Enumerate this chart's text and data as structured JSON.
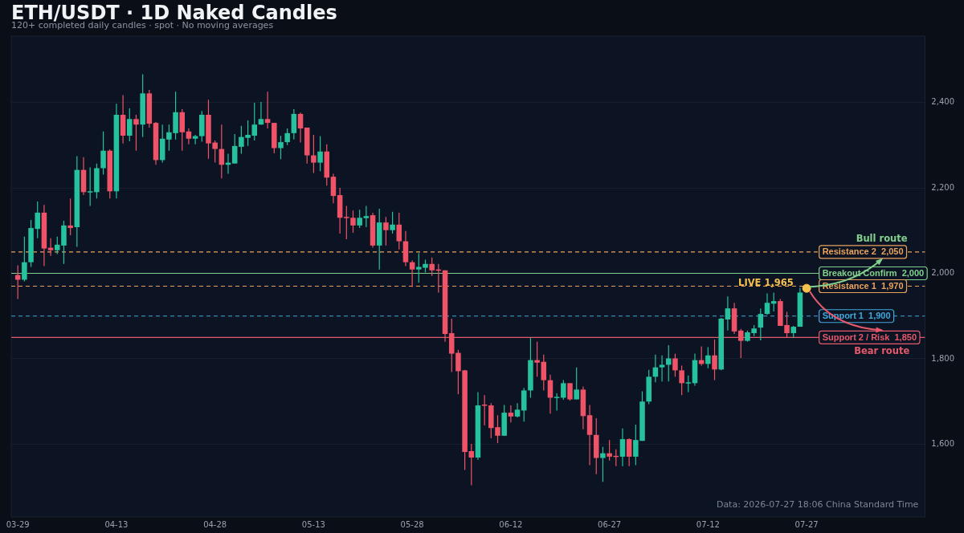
{
  "chart_data": {
    "type": "candlestick",
    "title": "ETH/USDT · 1D Naked Candles",
    "subtitle": "120+ completed daily candles · spot · No moving averages",
    "x": [
      "--03-29",
      "--03-30",
      "--03-31",
      "--04-01",
      "--04-02",
      "--04-03",
      "--04-04",
      "--04-05",
      "--04-06",
      "--04-07",
      "--04-08",
      "--04-09",
      "--04-10",
      "--04-11",
      "--04-12",
      "--04-13",
      "--04-14",
      "--04-15",
      "--04-16",
      "--04-17",
      "--04-18",
      "--04-19",
      "--04-20",
      "--04-21",
      "--04-22",
      "--04-23",
      "--04-24",
      "--04-25",
      "--04-26",
      "--04-27",
      "--04-28",
      "--04-29",
      "--04-30",
      "--05-01",
      "--05-02",
      "--05-03",
      "--05-04",
      "--05-05",
      "--05-06",
      "--05-07",
      "--05-08",
      "--05-09",
      "--05-10",
      "--05-11",
      "--05-12",
      "--05-13",
      "--05-14",
      "--05-15",
      "--05-16",
      "--05-17",
      "--05-18",
      "--05-19",
      "--05-20",
      "--05-21",
      "--05-22",
      "--05-23",
      "--05-24",
      "--05-25",
      "--05-26",
      "--05-27",
      "--05-28",
      "--05-29",
      "--05-30",
      "--05-31",
      "--06-01",
      "--06-02",
      "--06-03",
      "--06-04",
      "--06-05",
      "--06-06",
      "--06-07",
      "--06-08",
      "--06-09",
      "--06-10",
      "--06-11",
      "--06-12",
      "--06-13",
      "--06-14",
      "--06-15",
      "--06-16",
      "--06-17",
      "--06-18",
      "--06-19",
      "--06-20",
      "--06-21",
      "--06-22",
      "--06-23",
      "--06-24",
      "--06-25",
      "--06-26",
      "--06-27",
      "--06-28",
      "--06-29",
      "--06-30",
      "--07-01",
      "--07-02",
      "--07-03",
      "--07-04",
      "--07-05",
      "--07-06",
      "--07-07",
      "--07-08",
      "--07-09",
      "--07-10",
      "--07-11",
      "--07-12",
      "--07-13",
      "--07-14",
      "--07-15",
      "--07-16",
      "--07-17",
      "--07-18",
      "--07-19",
      "--07-20",
      "--07-21",
      "--07-22",
      "--07-23",
      "--07-24",
      "--07-25",
      "--07-26"
    ],
    "ohlc": [
      [
        1996,
        2019,
        1940,
        1985
      ],
      [
        1985,
        2086,
        1981,
        2026
      ],
      [
        2026,
        2125,
        2015,
        2106
      ],
      [
        2104,
        2168,
        2082,
        2142
      ],
      [
        2142,
        2160,
        2017,
        2058
      ],
      [
        2060,
        2082,
        2041,
        2054
      ],
      [
        2054,
        2086,
        2045,
        2067
      ],
      [
        2065,
        2123,
        2022,
        2112
      ],
      [
        2112,
        2175,
        2089,
        2106
      ],
      [
        2108,
        2274,
        2062,
        2242
      ],
      [
        2242,
        2272,
        2183,
        2190
      ],
      [
        2190,
        2248,
        2158,
        2192
      ],
      [
        2190,
        2257,
        2175,
        2246
      ],
      [
        2246,
        2332,
        2231,
        2287
      ],
      [
        2287,
        2290,
        2175,
        2192
      ],
      [
        2192,
        2397,
        2175,
        2371
      ],
      [
        2371,
        2417,
        2304,
        2322
      ],
      [
        2322,
        2386,
        2309,
        2361
      ],
      [
        2361,
        2371,
        2287,
        2348
      ],
      [
        2348,
        2466,
        2319,
        2421
      ],
      [
        2421,
        2429,
        2341,
        2350
      ],
      [
        2352,
        2354,
        2254,
        2265
      ],
      [
        2265,
        2348,
        2259,
        2315
      ],
      [
        2313,
        2348,
        2287,
        2330
      ],
      [
        2328,
        2425,
        2313,
        2377
      ],
      [
        2377,
        2384,
        2287,
        2330
      ],
      [
        2332,
        2339,
        2302,
        2315
      ],
      [
        2315,
        2324,
        2302,
        2321
      ],
      [
        2321,
        2380,
        2308,
        2371
      ],
      [
        2371,
        2406,
        2268,
        2304
      ],
      [
        2306,
        2311,
        2259,
        2291
      ],
      [
        2291,
        2348,
        2222,
        2254
      ],
      [
        2254,
        2280,
        2233,
        2259
      ],
      [
        2257,
        2326,
        2257,
        2298
      ],
      [
        2296,
        2345,
        2280,
        2319
      ],
      [
        2317,
        2358,
        2298,
        2324
      ],
      [
        2322,
        2399,
        2311,
        2348
      ],
      [
        2348,
        2401,
        2348,
        2361
      ],
      [
        2361,
        2425,
        2339,
        2352
      ],
      [
        2352,
        2352,
        2281,
        2293
      ],
      [
        2293,
        2322,
        2267,
        2307
      ],
      [
        2307,
        2339,
        2300,
        2328
      ],
      [
        2328,
        2384,
        2313,
        2373
      ],
      [
        2373,
        2376,
        2306,
        2339
      ],
      [
        2341,
        2341,
        2257,
        2276
      ],
      [
        2276,
        2324,
        2235,
        2259
      ],
      [
        2259,
        2321,
        2239,
        2285
      ],
      [
        2285,
        2302,
        2205,
        2224
      ],
      [
        2226,
        2233,
        2164,
        2181
      ],
      [
        2183,
        2200,
        2093,
        2130
      ],
      [
        2132,
        2158,
        2080,
        2130
      ],
      [
        2130,
        2147,
        2095,
        2112
      ],
      [
        2112,
        2149,
        2106,
        2130
      ],
      [
        2129,
        2158,
        2108,
        2134
      ],
      [
        2136,
        2142,
        2060,
        2065
      ],
      [
        2065,
        2151,
        2009,
        2119
      ],
      [
        2119,
        2132,
        2065,
        2101
      ],
      [
        2101,
        2144,
        2093,
        2114
      ],
      [
        2114,
        2142,
        2056,
        2075
      ],
      [
        2075,
        2099,
        2017,
        2026
      ],
      [
        2026,
        2030,
        1968,
        2009
      ],
      [
        2009,
        2047,
        1978,
        2015
      ],
      [
        2013,
        2032,
        2002,
        2022
      ],
      [
        2022,
        2037,
        1994,
        2007
      ],
      [
        2009,
        2022,
        1955,
        2007
      ],
      [
        2007,
        2007,
        1840,
        1858
      ],
      [
        1860,
        1894,
        1769,
        1812
      ],
      [
        1814,
        1821,
        1717,
        1771
      ],
      [
        1773,
        1774,
        1540,
        1582
      ],
      [
        1584,
        1601,
        1504,
        1569
      ],
      [
        1569,
        1722,
        1564,
        1691
      ],
      [
        1693,
        1715,
        1644,
        1691
      ],
      [
        1691,
        1696,
        1614,
        1638
      ],
      [
        1640,
        1668,
        1603,
        1620
      ],
      [
        1620,
        1692,
        1620,
        1674
      ],
      [
        1674,
        1691,
        1651,
        1665
      ],
      [
        1665,
        1696,
        1663,
        1681
      ],
      [
        1679,
        1732,
        1653,
        1726
      ],
      [
        1726,
        1849,
        1709,
        1797
      ],
      [
        1797,
        1840,
        1758,
        1791
      ],
      [
        1793,
        1810,
        1726,
        1750
      ],
      [
        1750,
        1763,
        1672,
        1709
      ],
      [
        1709,
        1719,
        1679,
        1711
      ],
      [
        1709,
        1750,
        1704,
        1743
      ],
      [
        1743,
        1743,
        1702,
        1705
      ],
      [
        1705,
        1780,
        1705,
        1728
      ],
      [
        1728,
        1735,
        1635,
        1666
      ],
      [
        1668,
        1692,
        1551,
        1622
      ],
      [
        1622,
        1661,
        1530,
        1568
      ],
      [
        1568,
        1594,
        1512,
        1579
      ],
      [
        1579,
        1610,
        1562,
        1571
      ],
      [
        1573,
        1588,
        1549,
        1571
      ],
      [
        1571,
        1637,
        1549,
        1612
      ],
      [
        1612,
        1614,
        1549,
        1571
      ],
      [
        1571,
        1646,
        1551,
        1610
      ],
      [
        1608,
        1724,
        1608,
        1700
      ],
      [
        1700,
        1774,
        1694,
        1758
      ],
      [
        1758,
        1810,
        1745,
        1780
      ],
      [
        1780,
        1808,
        1747,
        1786
      ],
      [
        1786,
        1832,
        1747,
        1801
      ],
      [
        1801,
        1812,
        1758,
        1773
      ],
      [
        1773,
        1784,
        1715,
        1743
      ],
      [
        1743,
        1761,
        1722,
        1745
      ],
      [
        1743,
        1812,
        1737,
        1797
      ],
      [
        1797,
        1829,
        1784,
        1788
      ],
      [
        1788,
        1827,
        1778,
        1808
      ],
      [
        1808,
        1845,
        1750,
        1775
      ],
      [
        1775,
        1896,
        1773,
        1894
      ],
      [
        1892,
        1946,
        1866,
        1918
      ],
      [
        1918,
        1931,
        1858,
        1864
      ],
      [
        1866,
        1870,
        1802,
        1842
      ],
      [
        1842,
        1866,
        1840,
        1862
      ],
      [
        1860,
        1879,
        1853,
        1871
      ],
      [
        1873,
        1918,
        1843,
        1905
      ],
      [
        1905,
        1953,
        1903,
        1931
      ],
      [
        1929,
        1955,
        1911,
        1935
      ],
      [
        1935,
        1940,
        1877,
        1877
      ],
      [
        1879,
        1910,
        1849,
        1860
      ],
      [
        1860,
        1877,
        1849,
        1875
      ],
      [
        1875,
        1966,
        1875,
        1955
      ]
    ],
    "colors": [
      "#ef5368",
      "#26c29d",
      "#26c29d",
      "#26c29d",
      "#ef5368",
      "#ef5368",
      "#26c29d",
      "#26c29d",
      "#ef5368",
      "#26c29d",
      "#ef5368",
      "#26c29d",
      "#26c29d",
      "#26c29d",
      "#ef5368",
      "#26c29d",
      "#ef5368",
      "#26c29d",
      "#ef5368",
      "#26c29d",
      "#ef5368",
      "#ef5368",
      "#26c29d",
      "#26c29d",
      "#26c29d",
      "#ef5368",
      "#ef5368",
      "#26c29d",
      "#26c29d",
      "#ef5368",
      "#ef5368",
      "#ef5368",
      "#26c29d",
      "#26c29d",
      "#26c29d",
      "#26c29d",
      "#26c29d",
      "#26c29d",
      "#ef5368",
      "#ef5368",
      "#26c29d",
      "#26c29d",
      "#26c29d",
      "#ef5368",
      "#ef5368",
      "#ef5368",
      "#26c29d",
      "#ef5368",
      "#ef5368",
      "#ef5368",
      "#ef5368",
      "#ef5368",
      "#26c29d",
      "#26c29d",
      "#ef5368",
      "#26c29d",
      "#ef5368",
      "#26c29d",
      "#ef5368",
      "#ef5368",
      "#ef5368",
      "#26c29d",
      "#26c29d",
      "#ef5368",
      "#ef5368",
      "#ef5368",
      "#ef5368",
      "#ef5368",
      "#ef5368",
      "#ef5368",
      "#26c29d",
      "#ef5368",
      "#ef5368",
      "#ef5368",
      "#26c29d",
      "#ef5368",
      "#26c29d",
      "#26c29d",
      "#26c29d",
      "#ef5368",
      "#ef5368",
      "#ef5368",
      "#26c29d",
      "#26c29d",
      "#ef5368",
      "#26c29d",
      "#ef5368",
      "#ef5368",
      "#ef5368",
      "#26c29d",
      "#ef5368",
      "#ef5368",
      "#26c29d",
      "#ef5368",
      "#26c29d",
      "#26c29d",
      "#26c29d",
      "#26c29d",
      "#26c29d",
      "#26c29d",
      "#ef5368",
      "#ef5368",
      "#26c29d",
      "#26c29d",
      "#ef5368",
      "#26c29d",
      "#ef5368",
      "#26c29d",
      "#26c29d",
      "#ef5368",
      "#ef5368",
      "#26c29d",
      "#26c29d",
      "#26c29d",
      "#26c29d",
      "#26c29d",
      "#ef5368",
      "#ef5368",
      "#26c29d",
      "#26c29d"
    ],
    "series": [
      {
        "type": "scatter",
        "x": [
          "--07-27"
        ],
        "values": [
          1965
        ],
        "color": "#f4c04e"
      }
    ],
    "marker": "circle",
    "xlim": [
      "--03-28",
      "--08-14"
    ],
    "xticks": [
      {
        "value": "--03-29",
        "label": "03-29"
      },
      {
        "value": "--04-13",
        "label": "04-13"
      },
      {
        "value": "--04-28",
        "label": "04-28"
      },
      {
        "value": "--05-13",
        "label": "05-13"
      },
      {
        "value": "--05-28",
        "label": "05-28"
      },
      {
        "value": "--06-12",
        "label": "06-12"
      },
      {
        "value": "--06-27",
        "label": "06-27"
      },
      {
        "value": "--07-12",
        "label": "07-12"
      },
      {
        "value": "--07-27",
        "label": "07-27"
      }
    ],
    "ylim": [
      1430,
      2555
    ],
    "yticks": [
      {
        "value": 1600,
        "label": "1,600"
      },
      {
        "value": 1800,
        "label": "1,800"
      },
      {
        "value": 2000,
        "label": "2,000"
      },
      {
        "value": 2200,
        "label": "2,200"
      },
      {
        "value": 2400,
        "label": "2,400"
      }
    ],
    "grid": "y",
    "ref_lines": [
      {
        "axis": "y",
        "value": 2050,
        "label": "Resistance 2  2,050",
        "color": "#e9a35c",
        "line_style": "dashed"
      },
      {
        "axis": "y",
        "value": 2000,
        "label": "Breakout Confirm  2,000",
        "color": "#82cf8e",
        "line_style": "solid"
      },
      {
        "axis": "y",
        "value": 1970,
        "label": "Resistance 1  1,970",
        "color": "#e9a35c",
        "line_style": "dashed"
      },
      {
        "axis": "y",
        "value": 1900,
        "label": "Support 1  1,900",
        "color": "#3fa9dc",
        "line_style": "dashed"
      },
      {
        "axis": "y",
        "value": 1850,
        "label": "Support 2 / Risk  1,850",
        "color": "#e5596c",
        "line_style": "solid"
      }
    ],
    "annotations": [
      {
        "text": "LIVE 1,965",
        "x": "--07-27",
        "y": 1965
      },
      "Bull route",
      "Bear route",
      "Data: 2026-07-27 18:06 China Standard Time"
    ]
  }
}
